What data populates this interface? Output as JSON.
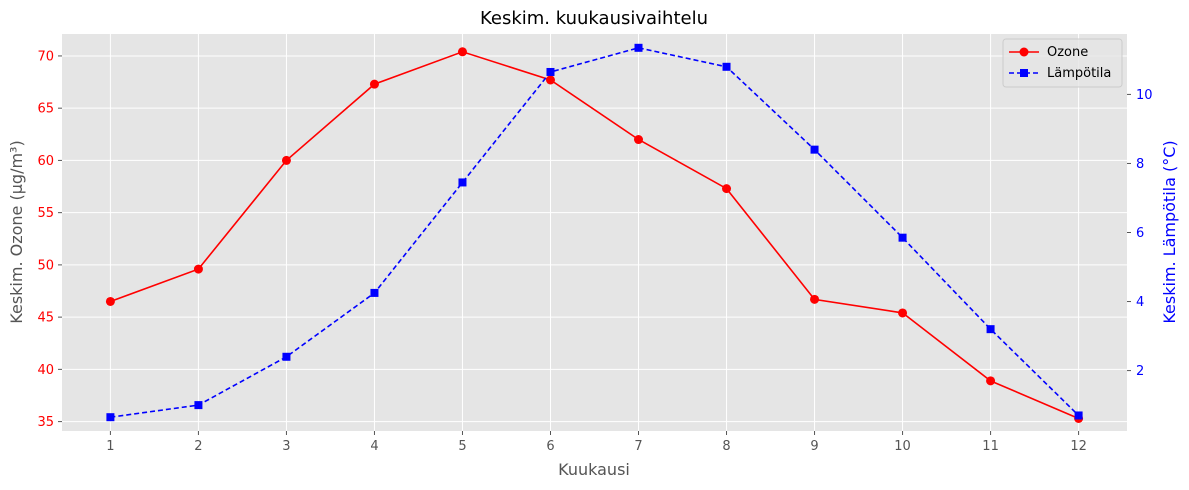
{
  "chart_data": {
    "type": "line",
    "title": "Keskim. kuukausivaihtelu",
    "xlabel": "Kuukausi",
    "ylabel_left": "Keskim. Ozone (µg/m³)",
    "ylabel_right": "Keskim. Lämpötila (°C)",
    "x": [
      1,
      2,
      3,
      4,
      5,
      6,
      7,
      8,
      9,
      10,
      11,
      12
    ],
    "x_ticks": [
      "1",
      "2",
      "3",
      "4",
      "5",
      "6",
      "7",
      "8",
      "9",
      "10",
      "11",
      "12"
    ],
    "y_left_ticks": [
      35,
      40,
      45,
      50,
      55,
      60,
      65,
      70
    ],
    "y_right_ticks": [
      2,
      4,
      6,
      8,
      10
    ],
    "ylim_left": [
      34.1,
      72.1
    ],
    "ylim_right": [
      0.25,
      11.75
    ],
    "xlim": [
      0.45,
      12.55
    ],
    "grid": true,
    "legend_position": "top-right",
    "series": [
      {
        "name": "Ozone",
        "axis": "left",
        "color": "#ff0000",
        "marker": "circle",
        "line_style": "solid",
        "values": [
          46.5,
          49.6,
          60.0,
          67.3,
          70.4,
          67.7,
          62.0,
          57.3,
          46.7,
          45.4,
          38.9,
          35.3
        ]
      },
      {
        "name": "Lämpötila",
        "axis": "right",
        "color": "#0000ff",
        "marker": "square",
        "line_style": "dashed",
        "values": [
          0.65,
          1.0,
          2.4,
          4.25,
          7.45,
          10.65,
          11.35,
          10.8,
          8.4,
          5.85,
          3.2,
          0.7
        ]
      }
    ],
    "colors": {
      "plot_background": "#e5e5e5",
      "grid": "#ffffff",
      "left_axis_ticks": "#ff0000",
      "right_axis_ticks": "#0000ff",
      "x_axis_ticks": "#555555",
      "axis_title_left": "#555555",
      "axis_title_right": "#0000ff"
    }
  }
}
